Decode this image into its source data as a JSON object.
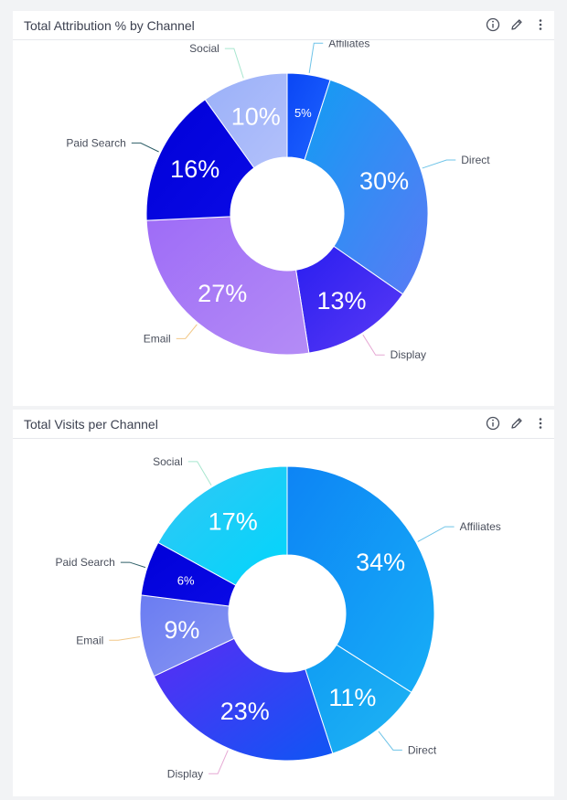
{
  "panels": [
    {
      "title": "Total Attribution % by Channel",
      "icons": [
        "info-icon",
        "pencil-icon",
        "more-vertical-icon"
      ]
    },
    {
      "title": "Total Visits per Channel",
      "icons": [
        "info-icon",
        "pencil-icon",
        "more-vertical-icon"
      ]
    }
  ],
  "chart_data": [
    {
      "type": "pie",
      "title": "Total Attribution % by Channel",
      "donut": true,
      "start_angle_deg": 0,
      "slices": [
        {
          "category": "Affiliates",
          "value": 5,
          "label": "5%",
          "color_start": "#0a46f5",
          "color_end": "#1f64ff"
        },
        {
          "category": "Direct",
          "value": 30,
          "label": "30%",
          "color_start": "#129cf3",
          "color_end": "#5a7af5"
        },
        {
          "category": "Display",
          "value": 13,
          "label": "13%",
          "color_start": "#2a1ef0",
          "color_end": "#5a3af5"
        },
        {
          "category": "Email",
          "value": 27,
          "label": "27%",
          "color_start": "#9e6cf7",
          "color_end": "#b48cf6"
        },
        {
          "category": "Paid Search",
          "value": 16,
          "label": "16%",
          "color_start": "#0000d8",
          "color_end": "#0a0ae6"
        },
        {
          "category": "Social",
          "value": 10,
          "label": "10%",
          "color_start": "#9ab0f8",
          "color_end": "#b3c1fb"
        }
      ],
      "leader_colors": {
        "Affiliates": "#6fc4e8",
        "Direct": "#6fc4e8",
        "Display": "#e6a8d4",
        "Email": "#f2c98a",
        "Paid Search": "#2e5f68",
        "Social": "#a8e6cf"
      }
    },
    {
      "type": "pie",
      "title": "Total Visits per Channel",
      "donut": true,
      "start_angle_deg": 0,
      "slices": [
        {
          "category": "Affiliates",
          "value": 34,
          "label": "34%",
          "color_start": "#0d84f5",
          "color_end": "#17aef6"
        },
        {
          "category": "Direct",
          "value": 11,
          "label": "11%",
          "color_start": "#0f9cf3",
          "color_end": "#1fb4f3"
        },
        {
          "category": "Display",
          "value": 23,
          "label": "23%",
          "color_start": "#5a2cf4",
          "color_end": "#0f56f4"
        },
        {
          "category": "Email",
          "value": 9,
          "label": "9%",
          "color_start": "#6a7cf2",
          "color_end": "#8896f2"
        },
        {
          "category": "Paid Search",
          "value": 6,
          "label": "6%",
          "color_start": "#0000d8",
          "color_end": "#0a0ae6"
        },
        {
          "category": "Social",
          "value": 17,
          "label": "17%",
          "color_start": "#34c6f5",
          "color_end": "#00d6fb"
        }
      ],
      "leader_colors": {
        "Affiliates": "#6fc4e8",
        "Direct": "#6fc4e8",
        "Display": "#e6a8d4",
        "Email": "#f2c98a",
        "Paid Search": "#2e5f68",
        "Social": "#a8e6cf"
      }
    }
  ]
}
